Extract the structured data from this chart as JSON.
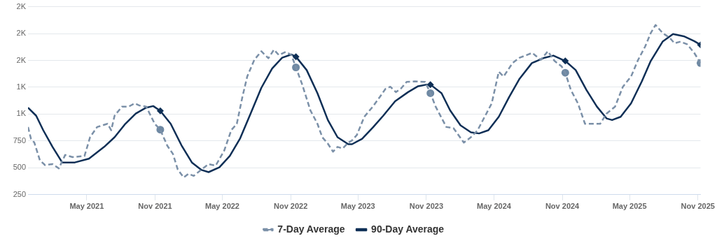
{
  "chart_data": {
    "type": "line",
    "xlim": [
      "2020-11-24",
      "2025-11-08"
    ],
    "xticks": [
      {
        "value": "2021-05-01",
        "label": "May 2021"
      },
      {
        "value": "2021-11-01",
        "label": "Nov 2021"
      },
      {
        "value": "2022-05-01",
        "label": "May 2022"
      },
      {
        "value": "2022-11-01",
        "label": "Nov 2022"
      },
      {
        "value": "2023-05-01",
        "label": "May 2023"
      },
      {
        "value": "2023-11-01",
        "label": "Nov 2023"
      },
      {
        "value": "2024-05-01",
        "label": "May 2024"
      },
      {
        "value": "2024-11-01",
        "label": "Nov 2024"
      },
      {
        "value": "2025-05-01",
        "label": "May 2025"
      },
      {
        "value": "2025-11-01",
        "label": "Nov 2025"
      }
    ],
    "ylim": [
      250,
      2000
    ],
    "yticks": [
      250,
      500,
      750,
      {
        "value": 1000,
        "label": "1K"
      },
      {
        "value": 1250,
        "label": "1K"
      },
      {
        "value": 1500,
        "label": "2K"
      },
      {
        "value": 1750,
        "label": "2K"
      },
      {
        "value": 2000,
        "label": "2K"
      }
    ],
    "grid": "y",
    "legend": "bottom",
    "series": [
      {
        "name": "7-Day Average",
        "color": "#7b90a8",
        "line_style": "dashed",
        "marker": "none",
        "x": [
          "2020-11-24",
          "2020-12-02",
          "2020-12-11",
          "2020-12-26",
          "2021-01-09",
          "2021-01-29",
          "2021-02-15",
          "2021-03-04",
          "2021-03-24",
          "2021-04-25",
          "2021-05-10",
          "2021-05-29",
          "2021-06-26",
          "2021-07-06",
          "2021-07-15",
          "2021-08-04",
          "2021-08-22",
          "2021-09-07",
          "2021-09-20",
          "2021-10-08",
          "2021-10-31",
          "2021-11-15",
          "2021-12-04",
          "2021-12-19",
          "2022-01-01",
          "2022-01-17",
          "2022-01-30",
          "2022-02-13",
          "2022-03-06",
          "2022-03-25",
          "2022-04-13",
          "2022-05-06",
          "2022-05-25",
          "2022-06-09",
          "2022-06-24",
          "2022-07-07",
          "2022-07-26",
          "2022-08-14",
          "2022-09-02",
          "2022-09-17",
          "2022-09-30",
          "2022-10-19",
          "2022-11-03",
          "2022-11-15",
          "2022-12-01",
          "2022-12-24",
          "2023-01-12",
          "2023-01-25",
          "2023-02-09",
          "2023-02-23",
          "2023-03-07",
          "2023-03-21",
          "2023-04-05",
          "2023-04-15",
          "2023-04-28",
          "2023-05-18",
          "2023-06-10",
          "2023-06-29",
          "2023-07-14",
          "2023-07-27",
          "2023-08-11",
          "2023-08-24",
          "2023-09-09",
          "2023-10-01",
          "2023-10-29",
          "2023-11-12",
          "2023-11-26",
          "2023-12-25",
          "2024-01-13",
          "2024-02-10",
          "2024-02-29",
          "2024-03-18",
          "2024-04-06",
          "2024-04-25",
          "2024-05-14",
          "2024-05-27",
          "2024-06-20",
          "2024-07-09",
          "2024-07-28",
          "2024-08-12",
          "2024-09-04",
          "2024-09-23",
          "2024-10-11",
          "2024-10-30",
          "2024-11-09",
          "2024-11-24",
          "2024-12-13",
          "2025-01-01",
          "2025-01-20",
          "2025-02-11",
          "2025-02-28",
          "2025-03-23",
          "2025-04-13",
          "2025-05-05",
          "2025-05-24",
          "2025-06-12",
          "2025-06-27",
          "2025-07-10",
          "2025-07-29",
          "2025-08-17",
          "2025-08-30",
          "2025-09-15",
          "2025-10-03",
          "2025-10-22",
          "2025-11-08"
        ],
        "values": [
          880,
          770,
          735,
          570,
          525,
          535,
          495,
          620,
          600,
          610,
          785,
          880,
          910,
          850,
          985,
          1070,
          1070,
          1100,
          1080,
          1070,
          910,
          855,
          705,
          630,
          485,
          410,
          445,
          425,
          485,
          535,
          520,
          660,
          850,
          910,
          1160,
          1350,
          1505,
          1585,
          1520,
          1600,
          1550,
          1580,
          1550,
          1435,
          1285,
          1035,
          910,
          785,
          725,
          650,
          695,
          680,
          735,
          755,
          805,
          975,
          1070,
          1160,
          1235,
          1255,
          1205,
          1235,
          1300,
          1305,
          1300,
          1195,
          1070,
          880,
          870,
          735,
          785,
          850,
          975,
          1100,
          1395,
          1350,
          1475,
          1525,
          1550,
          1570,
          1505,
          1585,
          1495,
          1445,
          1385,
          1225,
          1100,
          910,
          910,
          910,
          1005,
          1070,
          1255,
          1350,
          1505,
          1630,
          1755,
          1830,
          1755,
          1710,
          1660,
          1675,
          1650,
          1570,
          1475
        ]
      },
      {
        "name": "90-Day Average",
        "color": "#0e2f56",
        "line_style": "solid",
        "marker": "none",
        "x": [
          "2020-11-24",
          "2020-12-16",
          "2021-01-04",
          "2021-01-29",
          "2021-02-24",
          "2021-03-30",
          "2021-05-07",
          "2021-06-17",
          "2021-07-15",
          "2021-08-13",
          "2021-09-10",
          "2021-10-08",
          "2021-10-27",
          "2021-11-15",
          "2021-12-13",
          "2022-01-11",
          "2022-02-08",
          "2022-03-06",
          "2022-03-25",
          "2022-04-23",
          "2022-05-21",
          "2022-06-18",
          "2022-07-16",
          "2022-08-14",
          "2022-09-12",
          "2022-10-09",
          "2022-11-03",
          "2022-11-15",
          "2022-12-14",
          "2023-01-12",
          "2023-02-09",
          "2023-03-07",
          "2023-04-05",
          "2023-04-15",
          "2023-05-12",
          "2023-06-10",
          "2023-07-08",
          "2023-08-09",
          "2023-09-13",
          "2023-10-10",
          "2023-11-02",
          "2023-11-12",
          "2023-12-12",
          "2024-01-04",
          "2024-02-01",
          "2024-02-29",
          "2024-03-22",
          "2024-04-16",
          "2024-05-14",
          "2024-06-11",
          "2024-07-09",
          "2024-08-11",
          "2024-09-14",
          "2024-10-08",
          "2024-11-09",
          "2024-12-07",
          "2025-01-05",
          "2025-02-02",
          "2025-02-28",
          "2025-03-15",
          "2025-04-07",
          "2025-05-05",
          "2025-06-03",
          "2025-06-27",
          "2025-07-29",
          "2025-08-26",
          "2025-09-24",
          "2025-10-22",
          "2025-11-08"
        ],
        "values": [
          1060,
          985,
          850,
          695,
          550,
          550,
          585,
          695,
          785,
          910,
          1005,
          1060,
          1075,
          1030,
          910,
          710,
          550,
          480,
          460,
          505,
          610,
          775,
          1005,
          1245,
          1425,
          1525,
          1555,
          1535,
          1410,
          1195,
          945,
          785,
          720,
          720,
          770,
          875,
          985,
          1120,
          1205,
          1260,
          1275,
          1275,
          1195,
          1035,
          895,
          830,
          820,
          850,
          975,
          1160,
          1330,
          1475,
          1525,
          1545,
          1495,
          1410,
          1225,
          1070,
          960,
          945,
          975,
          1100,
          1305,
          1495,
          1675,
          1745,
          1725,
          1680,
          1645
        ]
      },
      {
        "type": "scatter",
        "color": "#6f89a3",
        "marker": "circle",
        "x": [
          "2021-11-15",
          "2022-11-15",
          "2023-11-12",
          "2024-11-09",
          "2025-11-08"
        ],
        "values": [
          855,
          1435,
          1195,
          1385,
          1475
        ]
      },
      {
        "type": "scatter",
        "color": "#0e2f56",
        "marker": "diamond",
        "x": [
          "2021-11-15",
          "2022-11-15",
          "2023-11-12",
          "2024-11-09",
          "2025-11-08"
        ],
        "values": [
          1030,
          1535,
          1275,
          1495,
          1645
        ]
      }
    ]
  }
}
